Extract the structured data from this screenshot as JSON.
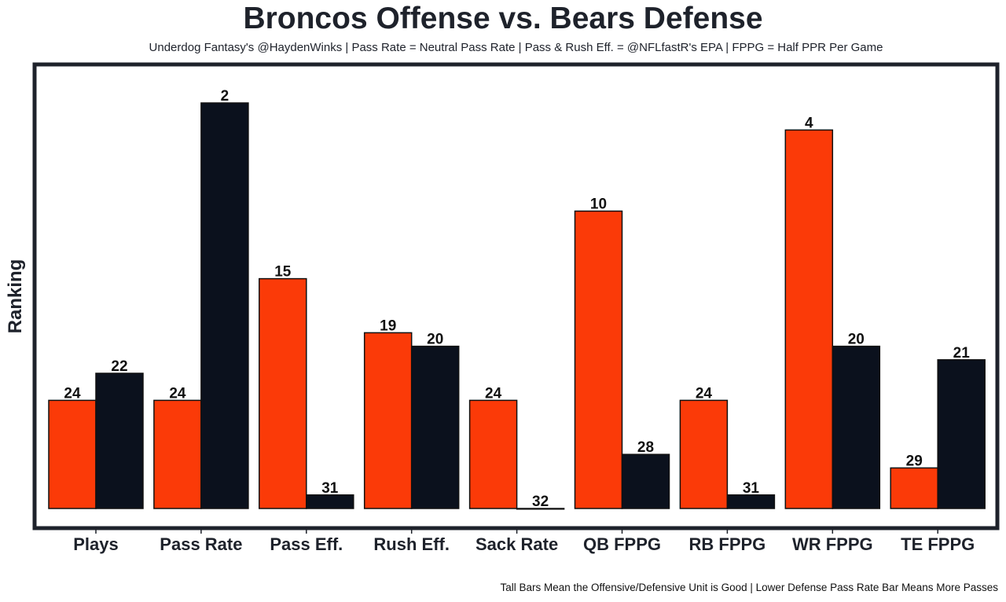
{
  "chart_data": {
    "type": "bar",
    "title": "Broncos Offense vs. Bears Defense",
    "subtitle": "Underdog Fantasy's @HaydenWinks | Pass Rate = Neutral Pass Rate | Pass & Rush Eff. = @NFLfastR's EPA | FPPG = Half PPR Per Game",
    "footer": "Tall Bars Mean the Offensive/Defensive Unit is Good | Lower Defense Pass Rate Bar Means More Passes",
    "xlabel": "",
    "ylabel": "Ranking",
    "ylim": [
      32,
      1
    ],
    "grid": false,
    "legend": "none",
    "categories": [
      "Plays",
      "Pass Rate",
      "Pass Eff.",
      "Rush Eff.",
      "Sack Rate",
      "QB FPPG",
      "RB FPPG",
      "WR FPPG",
      "TE FPPG"
    ],
    "series": [
      {
        "name": "Broncos Offense",
        "color": "#fb3a08",
        "values": [
          24,
          24,
          15,
          19,
          24,
          10,
          24,
          4,
          29
        ]
      },
      {
        "name": "Bears Defense",
        "color": "#0b111d",
        "values": [
          22,
          2,
          31,
          20,
          32,
          28,
          31,
          20,
          21
        ]
      }
    ]
  }
}
